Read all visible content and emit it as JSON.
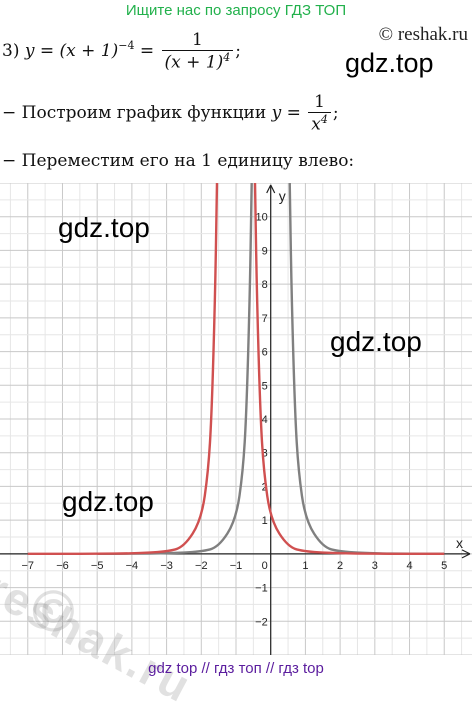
{
  "header": {
    "banner": "Ищите нас по запросу ГДЗ ТОП",
    "site": "© reshak.ru"
  },
  "watermarks": {
    "gdz1": "gdz.top",
    "gdz2": "gdz.top",
    "gdz3": "gdz.top",
    "gdz4": "gdz.top",
    "reshak": "reshak.ru",
    "copyright": "©"
  },
  "problem": {
    "number": "3)",
    "lhs": "y = (x + 1)",
    "lhs_exp": "−4",
    "eq": "=",
    "frac_num": "1",
    "frac_den": "(x + 1)",
    "frac_den_exp": "4",
    "end": ";"
  },
  "steps": {
    "step1_prefix": "− Построим график функции",
    "step1_lhs": "y =",
    "step1_num": "1",
    "step1_den": "x",
    "step1_den_exp": "4",
    "step1_end": ";",
    "step2": "− Переместим его на 1 единицу влево:"
  },
  "footer": {
    "text": "gdz top  //  гдз топ  //  гдз top"
  },
  "chart_data": {
    "type": "line",
    "xlabel": "x",
    "ylabel": "y",
    "xlim": [
      -7.8,
      5.8
    ],
    "ylim": [
      -3.0,
      11.0
    ],
    "x_ticks": [
      -7,
      -6,
      -5,
      -4,
      -3,
      -2,
      -1,
      1,
      2,
      3,
      4,
      5
    ],
    "y_ticks": [
      -2,
      -1,
      1,
      2,
      3,
      4,
      5,
      6,
      7,
      8,
      9,
      10
    ],
    "origin_label": "0",
    "grid": true,
    "series": [
      {
        "color": "#808080",
        "x": [
          -5.0,
          -4.0,
          -3.0,
          -2.0,
          -1.5,
          -1.0,
          -0.8,
          -0.7,
          -0.6,
          -0.55,
          -0.5,
          0.5,
          0.55,
          0.6,
          0.7,
          0.8,
          1.0,
          1.5,
          2.0,
          3.0,
          4.0,
          5.0
        ],
        "y": [
          0.0016,
          0.0039,
          0.0123,
          0.0625,
          0.198,
          1.0,
          2.44,
          4.16,
          7.72,
          10.9,
          16.0,
          16.0,
          10.9,
          7.72,
          4.16,
          2.44,
          1.0,
          0.198,
          0.0625,
          0.0123,
          0.0039,
          0.0016
        ]
      },
      {
        "color": "#d05050",
        "x": [
          -7.0,
          -6.0,
          -5.0,
          -4.0,
          -3.0,
          -2.5,
          -2.0,
          -1.8,
          -1.7,
          -1.6,
          -1.55,
          -1.5,
          -0.5,
          -0.45,
          -0.4,
          -0.3,
          -0.2,
          0.0,
          0.5,
          1.0,
          2.0,
          3.0,
          4.0,
          5.0
        ],
        "y": [
          0.0008,
          0.0016,
          0.0039,
          0.0123,
          0.0625,
          0.198,
          1.0,
          2.44,
          4.16,
          7.72,
          10.9,
          16.0,
          16.0,
          10.9,
          7.72,
          4.16,
          2.44,
          1.0,
          0.198,
          0.0625,
          0.0123,
          0.0039,
          0.0016,
          0.0008
        ]
      }
    ]
  }
}
